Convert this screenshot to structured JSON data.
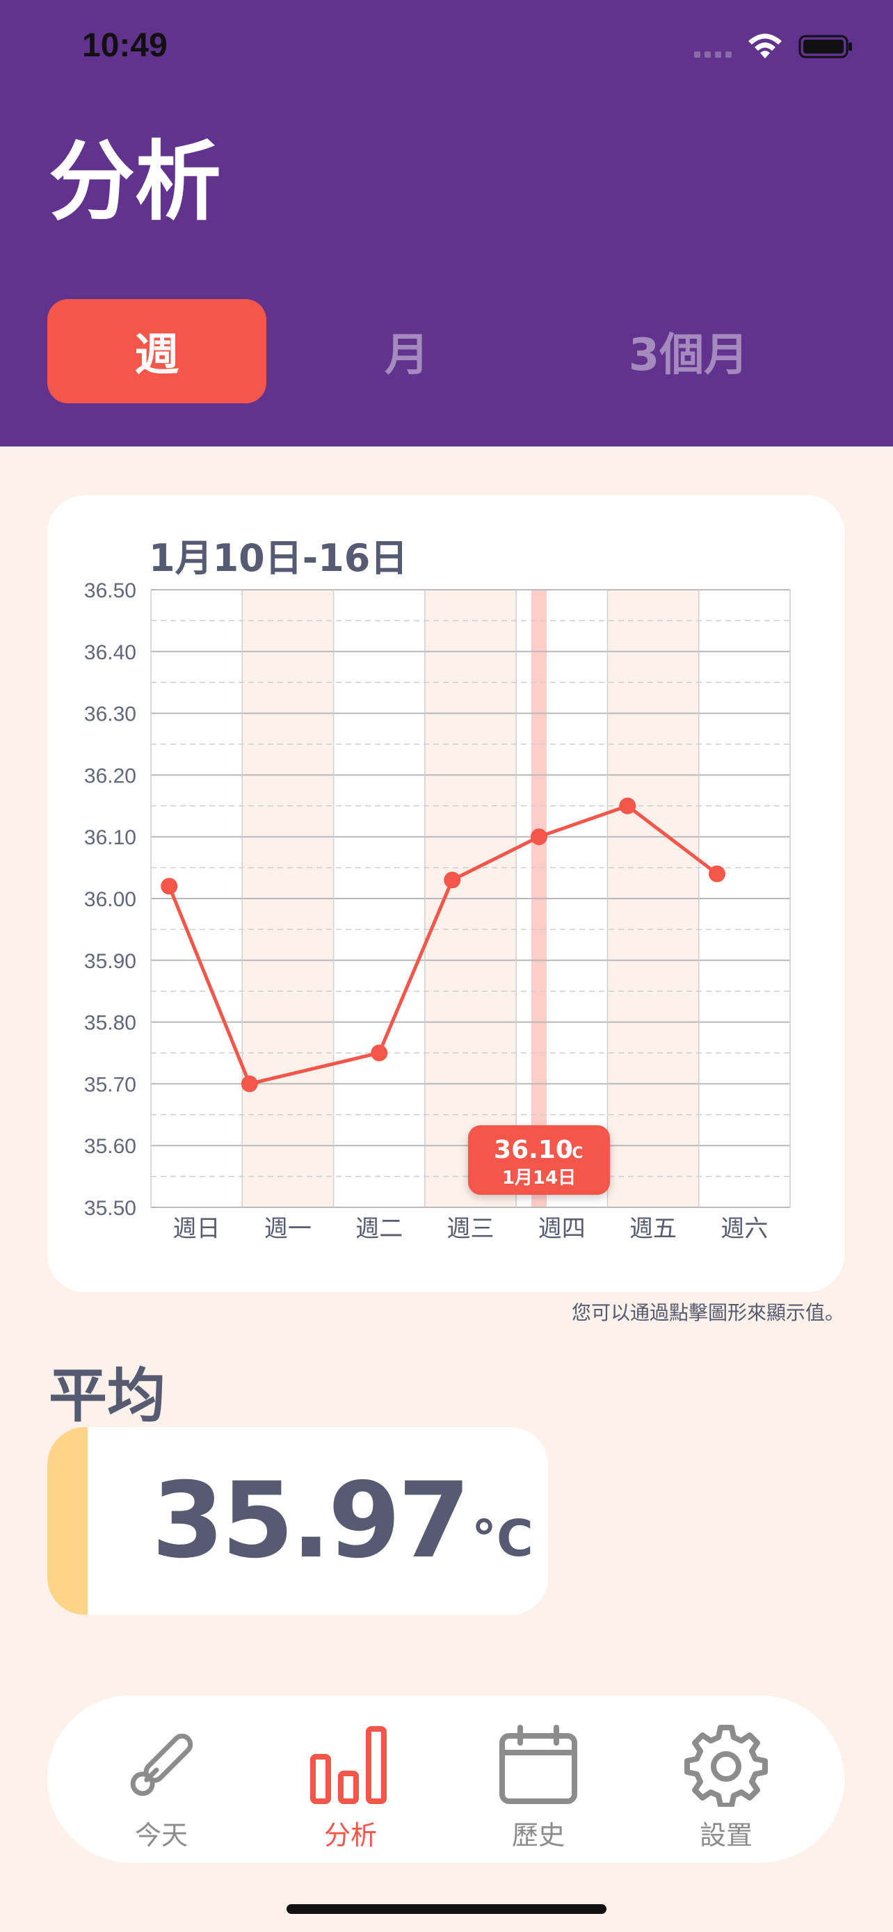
{
  "status": {
    "time": "10:49"
  },
  "header": {
    "title": "分析"
  },
  "segments": [
    {
      "label": "週",
      "active": true
    },
    {
      "label": "月",
      "active": false
    },
    {
      "label": "3個月",
      "active": false
    }
  ],
  "chart_data": {
    "type": "line",
    "title": "1月10日-16日",
    "categories": [
      "週日",
      "週一",
      "週二",
      "週三",
      "週四",
      "週五",
      "週六"
    ],
    "x": [
      0.2,
      1.08,
      2.5,
      3.3,
      4.25,
      5.22,
      6.2
    ],
    "values": [
      36.02,
      35.7,
      35.75,
      36.03,
      36.1,
      36.15,
      36.04
    ],
    "ylim": [
      35.5,
      36.5
    ],
    "yticks": [
      "36.50",
      "36.40",
      "36.30",
      "36.20",
      "36.10",
      "36.00",
      "35.90",
      "35.80",
      "35.70",
      "35.60",
      "35.50"
    ],
    "shaded_columns": [
      1,
      3,
      5
    ],
    "highlight_x": 4.25,
    "grid": true,
    "color": "#f5564a",
    "tooltip": {
      "value": "36.10",
      "unit": "°C",
      "date": "1月14日"
    }
  },
  "hint": "您可以通過點擊圖形來顯示值。",
  "average": {
    "title": "平均",
    "value": "35.97",
    "unit": "°C"
  },
  "tabs": [
    {
      "label": "今天",
      "icon": "thermometer-icon",
      "active": false
    },
    {
      "label": "分析",
      "icon": "bar-chart-icon",
      "active": true
    },
    {
      "label": "歷史",
      "icon": "calendar-icon",
      "active": false
    },
    {
      "label": "設置",
      "icon": "gear-icon",
      "active": false
    }
  ],
  "colors": {
    "header": "#62338e",
    "accent": "#f5564a",
    "background": "#fdf1ec",
    "average_bar": "#fed587"
  }
}
